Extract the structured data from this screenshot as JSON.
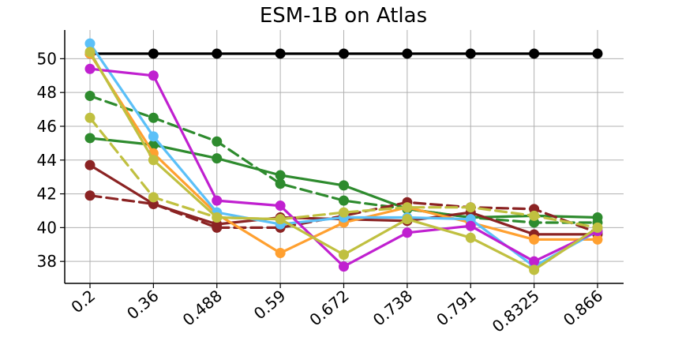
{
  "chart_data": {
    "type": "line",
    "title": "ESM-1B on Atlas",
    "xlabel": "",
    "ylabel": "",
    "categories": [
      "0.2",
      "0.36",
      "0.488",
      "0.59",
      "0.672",
      "0.738",
      "0.791",
      "0.8325",
      "0.866"
    ],
    "ylim": [
      36.7,
      51.7
    ],
    "yticks": [
      38,
      40,
      42,
      44,
      46,
      48,
      50
    ],
    "grid": true,
    "legend": false,
    "series": [
      {
        "color": "#000000",
        "dash": "solid",
        "values": [
          50.3,
          50.3,
          50.3,
          50.3,
          50.3,
          50.3,
          50.3,
          50.3,
          50.3
        ]
      },
      {
        "color": "#2e8b2e",
        "dash": "dashed",
        "values": [
          47.8,
          46.5,
          45.1,
          42.6,
          41.6,
          41.1,
          40.6,
          40.3,
          40.3
        ]
      },
      {
        "color": "#2e8b2e",
        "dash": "solid",
        "values": [
          45.3,
          44.9,
          44.1,
          43.1,
          42.5,
          41.1,
          40.6,
          40.7,
          40.6
        ]
      },
      {
        "color": "#8b2323",
        "dash": "dashed",
        "values": [
          41.9,
          41.4,
          40.0,
          40.0,
          40.7,
          41.5,
          41.2,
          41.1,
          39.7
        ]
      },
      {
        "color": "#8b2323",
        "dash": "solid",
        "values": [
          43.7,
          41.4,
          40.2,
          40.6,
          40.5,
          40.4,
          40.9,
          39.6,
          39.6
        ]
      },
      {
        "color": "#ffa030",
        "dash": "solid",
        "values": [
          50.3,
          44.4,
          40.8,
          38.5,
          40.3,
          41.2,
          40.3,
          39.3,
          39.3
        ]
      },
      {
        "color": "#5bc0f8",
        "dash": "solid",
        "values": [
          50.9,
          45.4,
          40.9,
          40.2,
          40.6,
          40.6,
          40.5,
          37.7,
          39.8
        ]
      },
      {
        "color": "#c020d0",
        "dash": "solid",
        "values": [
          49.4,
          49.0,
          41.6,
          41.3,
          37.7,
          39.7,
          40.1,
          38.0,
          39.8
        ]
      },
      {
        "color": "#c0c040",
        "dash": "dashed",
        "values": [
          46.5,
          41.8,
          40.6,
          40.5,
          40.9,
          41.2,
          41.2,
          40.7,
          40.0
        ]
      },
      {
        "color": "#c0c040",
        "dash": "solid",
        "values": [
          50.4,
          44.0,
          40.6,
          40.5,
          38.4,
          40.5,
          39.4,
          37.5,
          40.0
        ]
      }
    ]
  }
}
